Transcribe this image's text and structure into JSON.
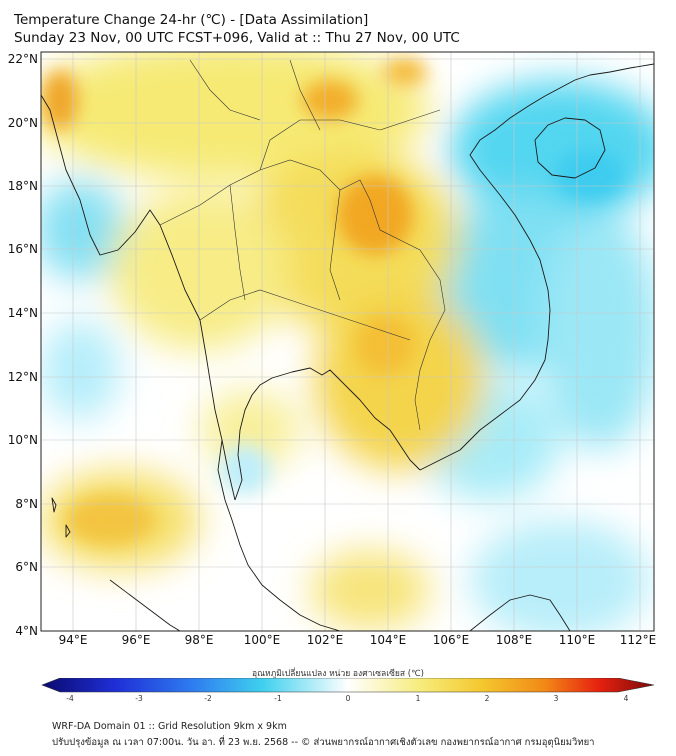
{
  "header": {
    "title": "Temperature Change 24-hr (℃) - [Data Assimilation]",
    "subtitle": "Sunday 23 Nov, 00 UTC FCST+096, Valid at :: Thu 27 Nov, 00 UTC"
  },
  "map": {
    "lat_ticks": [
      "22°N",
      "20°N",
      "18°N",
      "16°N",
      "14°N",
      "12°N",
      "10°N",
      "8°N",
      "6°N",
      "4°N"
    ],
    "lon_ticks": [
      "94°E",
      "96°E",
      "98°E",
      "100°E",
      "102°E",
      "104°E",
      "106°E",
      "108°E",
      "110°E",
      "112°E"
    ],
    "lat_range": [
      4,
      22.2
    ],
    "lon_range": [
      93,
      112.5
    ],
    "colors": {
      "cool": "#3fd0ee",
      "neutral": "#ffffff",
      "warm": "#f4e05a",
      "hot": "#f39a1c"
    }
  },
  "colorbar": {
    "title": "อุณหภูมิเปลี่ยนแปลง หน่วย องศาเซลเซียส (℃)",
    "ticks": [
      "-4",
      "-3",
      "-2",
      "-1",
      "0",
      "1",
      "2",
      "3",
      "4"
    ],
    "min": -4,
    "max": 4
  },
  "footer": {
    "line1": "WRF-DA Domain 01 :: Grid Resolution 9km x 9km",
    "line2": "ปรับปรุงข้อมูล ณ เวลา 07:00น. วัน อา. ที่ 23 พ.ย. 2568 -- © ส่วนพยากรณ์อากาศเชิงตัวเลข กองพยากรณ์อากาศ กรมอุตุนิยมวิทยา"
  }
}
